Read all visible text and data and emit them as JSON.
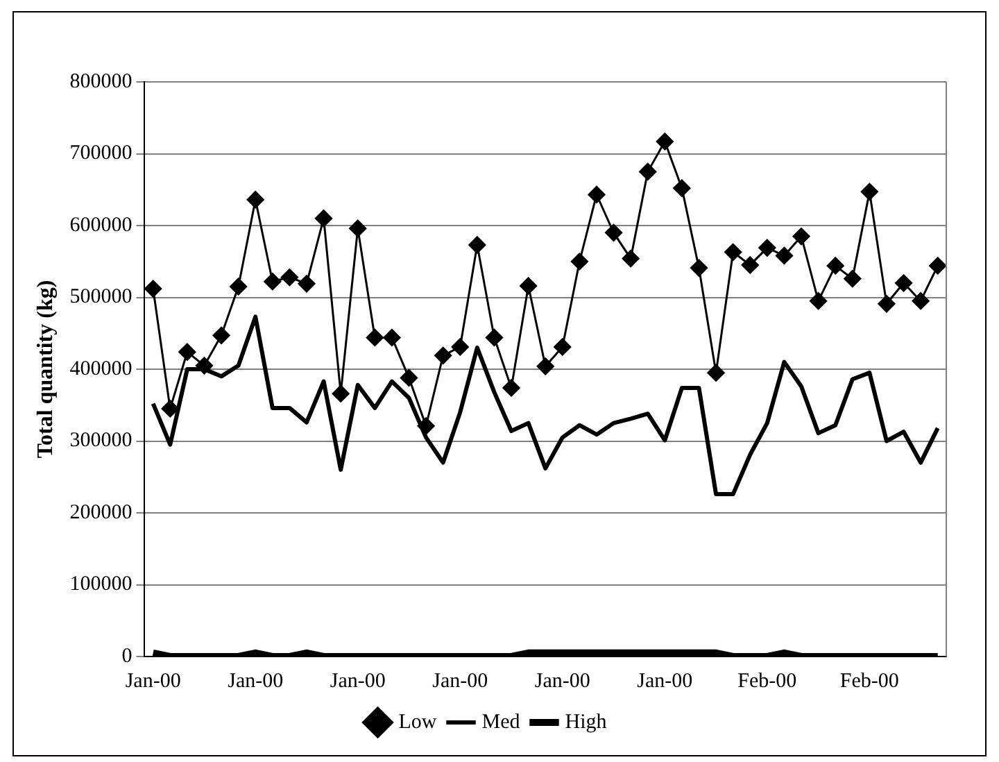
{
  "chart_data": {
    "type": "line",
    "ylabel": "Total quantity (kg)",
    "categories": [
      "Jan-00",
      null,
      null,
      null,
      null,
      null,
      "Jan-00",
      null,
      null,
      null,
      null,
      null,
      "Jan-00",
      null,
      null,
      null,
      null,
      null,
      "Jan-00",
      null,
      null,
      null,
      null,
      null,
      "Jan-00",
      null,
      null,
      null,
      null,
      null,
      "Jan-00",
      null,
      null,
      null,
      null,
      null,
      "Feb-00",
      null,
      null,
      null,
      null,
      null,
      "Feb-00",
      null,
      null,
      null,
      null
    ],
    "series": [
      {
        "name": "Low",
        "color": "#000000",
        "marker": "diamond",
        "values": [
          512000,
          345000,
          424000,
          405000,
          447000,
          515000,
          636000,
          522000,
          528000,
          519000,
          610000,
          366000,
          596000,
          444000,
          444000,
          388000,
          321000,
          419000,
          431000,
          573000,
          444000,
          374000,
          516000,
          404000,
          431000,
          550000,
          643000,
          590000,
          554000,
          675000,
          717000,
          652000,
          541000,
          395000,
          563000,
          545000,
          569000,
          558000,
          585000,
          495000,
          544000,
          526000,
          647000,
          491000,
          520000,
          495000,
          544000
        ]
      },
      {
        "name": "Med",
        "color": "#000000",
        "marker": "none",
        "values": [
          352000,
          295000,
          400000,
          400000,
          390000,
          405000,
          473000,
          346000,
          346000,
          326000,
          383000,
          260000,
          378000,
          346000,
          383000,
          360000,
          305000,
          270000,
          340000,
          430000,
          368000,
          314000,
          325000,
          262000,
          305000,
          322000,
          309000,
          325000,
          331000,
          338000,
          301000,
          374000,
          374000,
          226000,
          226000,
          281000,
          325000,
          410000,
          376000,
          311000,
          322000,
          386000,
          395000,
          300000,
          313000,
          270000,
          318000
        ]
      },
      {
        "name": "High",
        "color": "#000000",
        "marker": "none",
        "values": [
          5000,
          0,
          0,
          0,
          0,
          0,
          5000,
          0,
          0,
          5000,
          0,
          0,
          0,
          0,
          0,
          0,
          0,
          0,
          0,
          0,
          0,
          0,
          5000,
          5000,
          5000,
          5000,
          5000,
          5000,
          5000,
          5000,
          5000,
          5000,
          5000,
          5000,
          0,
          0,
          0,
          5000,
          0,
          0,
          0,
          0,
          0,
          0,
          0,
          0,
          0
        ]
      }
    ],
    "ylim": [
      0,
      800000
    ],
    "yticks": [
      0,
      100000,
      200000,
      300000,
      400000,
      500000,
      600000,
      700000,
      800000
    ],
    "grid": "y",
    "legend": "bottom"
  }
}
